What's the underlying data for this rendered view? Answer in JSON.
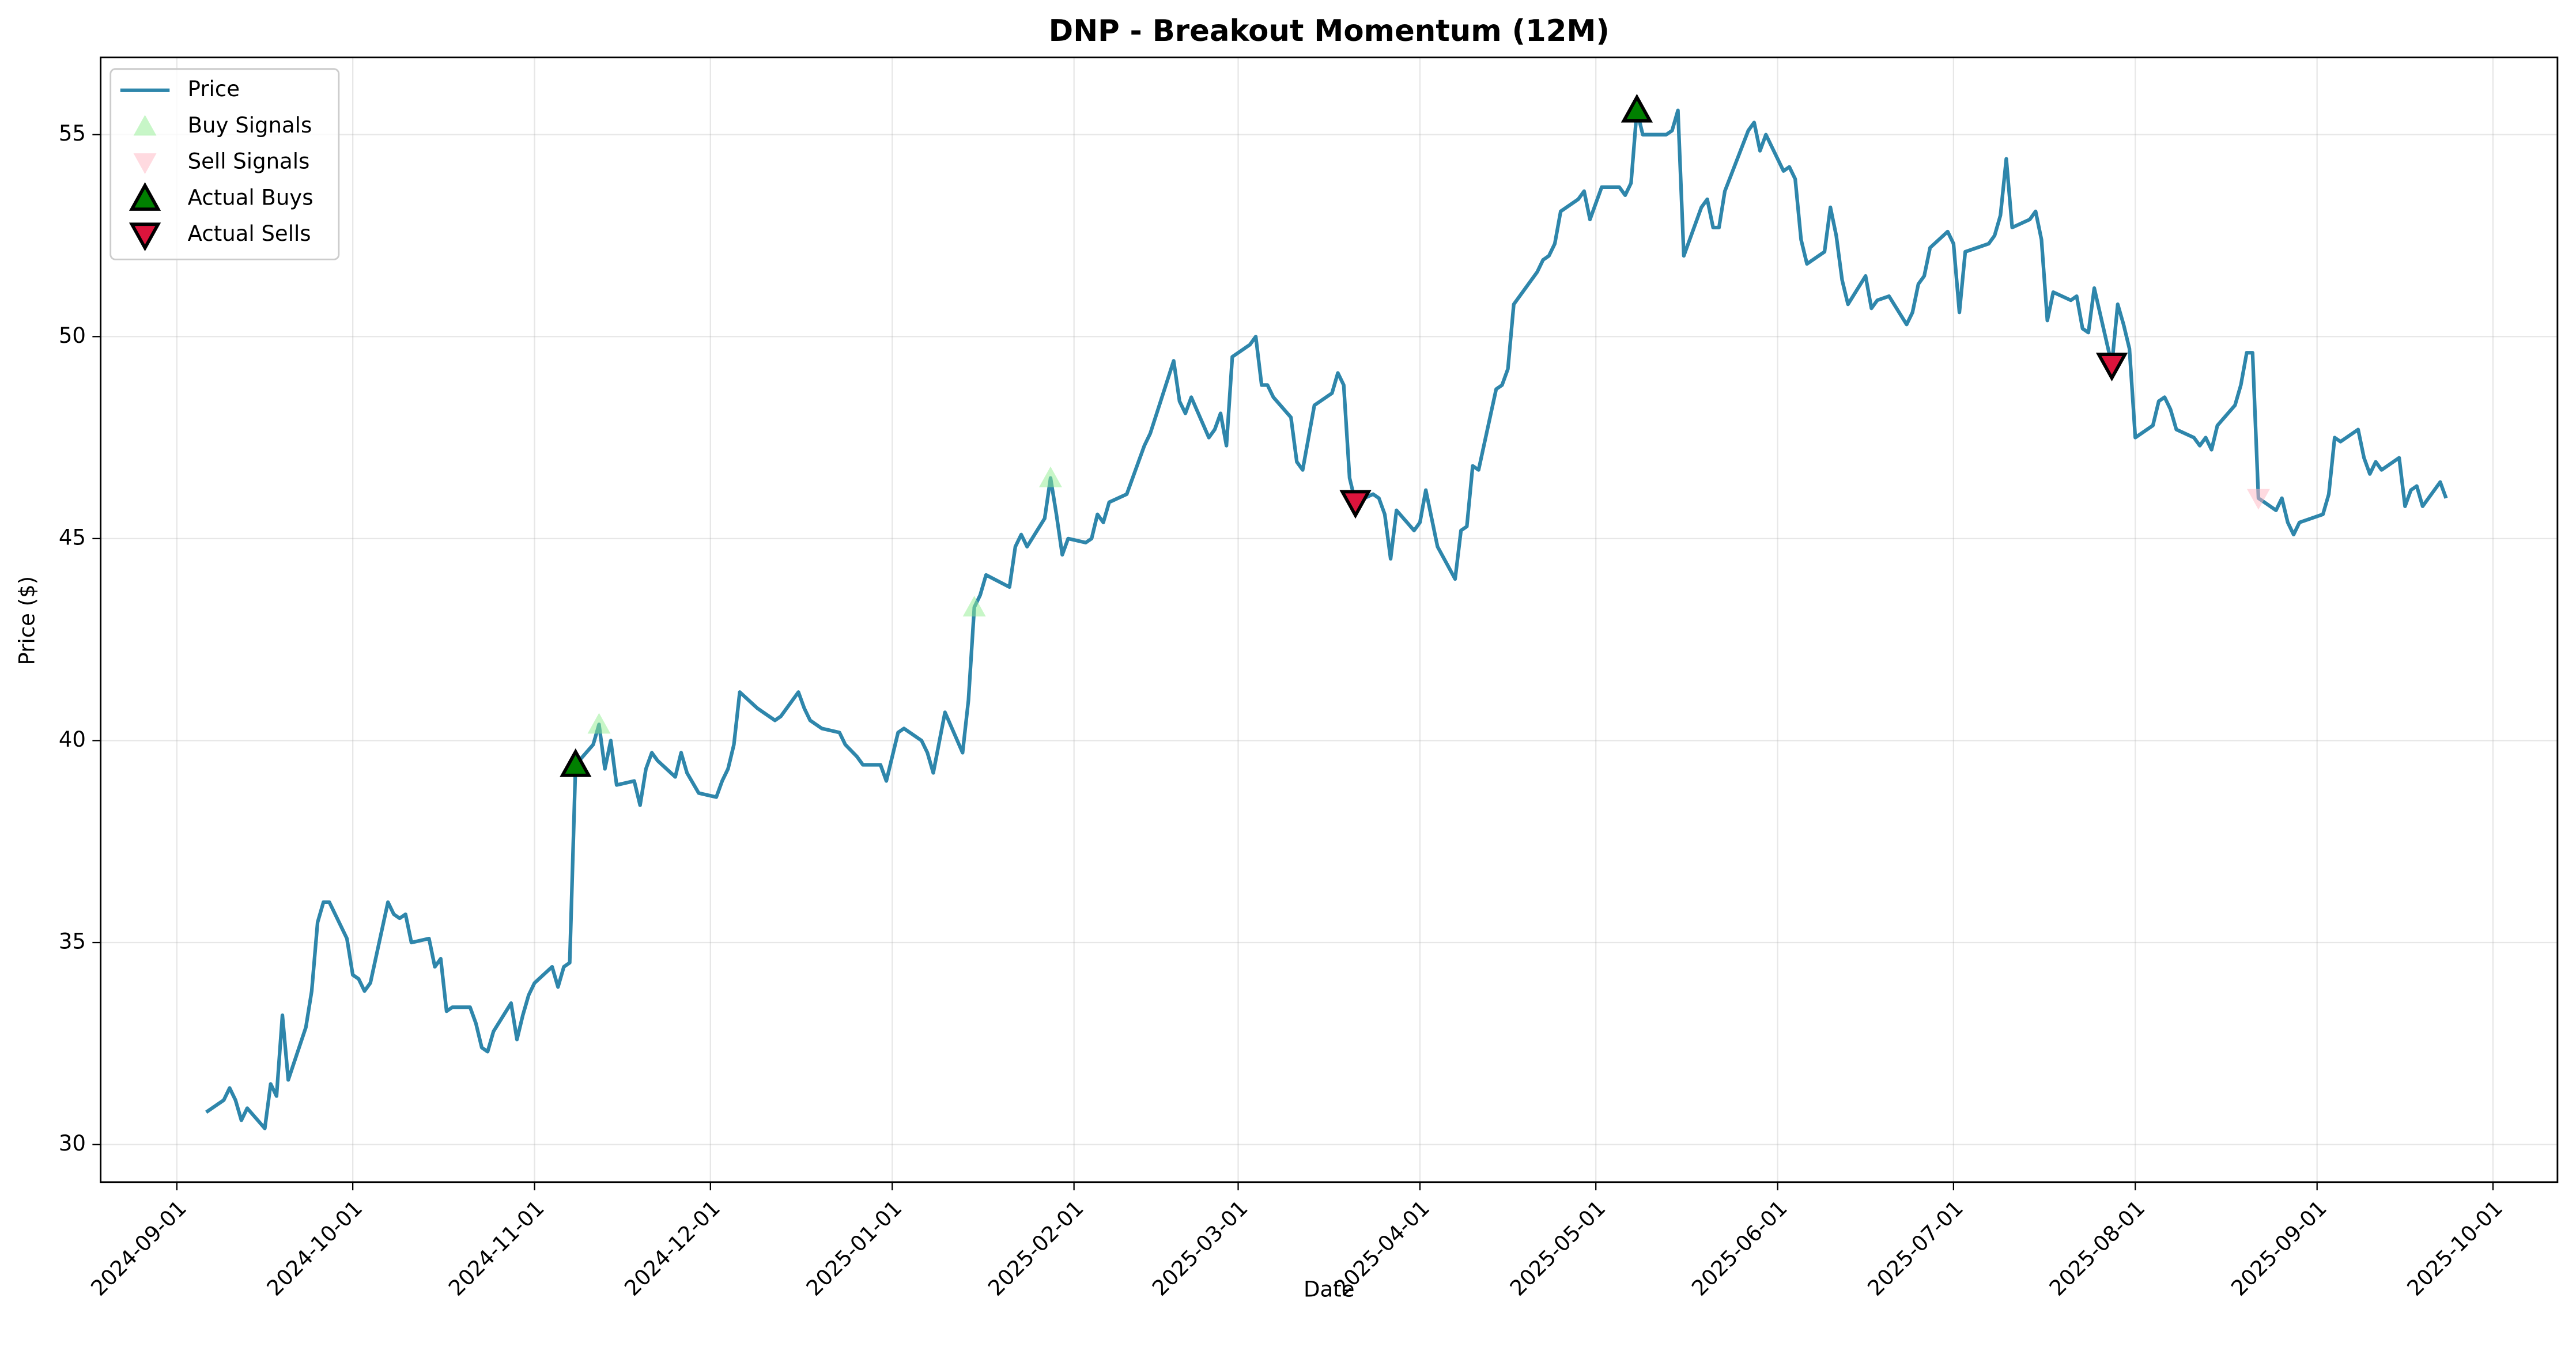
{
  "chart_data": {
    "type": "line",
    "title": "DNP - Breakout Momentum (12M)",
    "xlabel": "Date",
    "ylabel": "Price ($)",
    "xlim": [
      "2024-08-19",
      "2025-10-12"
    ],
    "xticks": [
      "2024-09-01",
      "2024-10-01",
      "2024-11-01",
      "2024-12-01",
      "2025-01-01",
      "2025-02-01",
      "2025-03-01",
      "2025-04-01",
      "2025-05-01",
      "2025-06-01",
      "2025-07-01",
      "2025-08-01",
      "2025-09-01",
      "2025-10-01"
    ],
    "ylim": [
      29.07,
      56.91
    ],
    "yticks": [
      30,
      35,
      40,
      45,
      50,
      55
    ],
    "grid": true,
    "legend": "upper left",
    "series": [
      {
        "name": "Price",
        "color": "#2e86ab",
        "marker": "none",
        "x": [
          "2024-09-06",
          "2024-09-09",
          "2024-09-10",
          "2024-09-11",
          "2024-09-12",
          "2024-09-13",
          "2024-09-16",
          "2024-09-17",
          "2024-09-18",
          "2024-09-19",
          "2024-09-20",
          "2024-09-23",
          "2024-09-24",
          "2024-09-25",
          "2024-09-26",
          "2024-09-27",
          "2024-09-30",
          "2024-10-01",
          "2024-10-02",
          "2024-10-03",
          "2024-10-04",
          "2024-10-07",
          "2024-10-08",
          "2024-10-09",
          "2024-10-10",
          "2024-10-11",
          "2024-10-14",
          "2024-10-15",
          "2024-10-16",
          "2024-10-17",
          "2024-10-18",
          "2024-10-21",
          "2024-10-22",
          "2024-10-23",
          "2024-10-24",
          "2024-10-25",
          "2024-10-28",
          "2024-10-29",
          "2024-10-30",
          "2024-10-31",
          "2024-11-01",
          "2024-11-04",
          "2024-11-05",
          "2024-11-06",
          "2024-11-07",
          "2024-11-08",
          "2024-11-11",
          "2024-11-12",
          "2024-11-13",
          "2024-11-14",
          "2024-11-15",
          "2024-11-18",
          "2024-11-19",
          "2024-11-20",
          "2024-11-21",
          "2024-11-22",
          "2024-11-25",
          "2024-11-26",
          "2024-11-27",
          "2024-11-29",
          "2024-12-02",
          "2024-12-03",
          "2024-12-04",
          "2024-12-05",
          "2024-12-06",
          "2024-12-09",
          "2024-12-10",
          "2024-12-11",
          "2024-12-12",
          "2024-12-13",
          "2024-12-16",
          "2024-12-17",
          "2024-12-18",
          "2024-12-19",
          "2024-12-20",
          "2024-12-23",
          "2024-12-24",
          "2024-12-26",
          "2024-12-27",
          "2024-12-30",
          "2024-12-31",
          "2025-01-02",
          "2025-01-03",
          "2025-01-06",
          "2025-01-07",
          "2025-01-08",
          "2025-01-10",
          "2025-01-13",
          "2025-01-14",
          "2025-01-15",
          "2025-01-16",
          "2025-01-17",
          "2025-01-21",
          "2025-01-22",
          "2025-01-23",
          "2025-01-24",
          "2025-01-27",
          "2025-01-28",
          "2025-01-29",
          "2025-01-30",
          "2025-01-31",
          "2025-02-03",
          "2025-02-04",
          "2025-02-05",
          "2025-02-06",
          "2025-02-07",
          "2025-02-10",
          "2025-02-11",
          "2025-02-12",
          "2025-02-13",
          "2025-02-14",
          "2025-02-18",
          "2025-02-19",
          "2025-02-20",
          "2025-02-21",
          "2025-02-24",
          "2025-02-25",
          "2025-02-26",
          "2025-02-27",
          "2025-02-28",
          "2025-03-03",
          "2025-03-04",
          "2025-03-05",
          "2025-03-06",
          "2025-03-07",
          "2025-03-10",
          "2025-03-11",
          "2025-03-12",
          "2025-03-13",
          "2025-03-14",
          "2025-03-17",
          "2025-03-18",
          "2025-03-19",
          "2025-03-20",
          "2025-03-21",
          "2025-03-24",
          "2025-03-25",
          "2025-03-26",
          "2025-03-27",
          "2025-03-28",
          "2025-03-31",
          "2025-04-01",
          "2025-04-02",
          "2025-04-03",
          "2025-04-04",
          "2025-04-07",
          "2025-04-08",
          "2025-04-09",
          "2025-04-10",
          "2025-04-11",
          "2025-04-14",
          "2025-04-15",
          "2025-04-16",
          "2025-04-17",
          "2025-04-21",
          "2025-04-22",
          "2025-04-23",
          "2025-04-24",
          "2025-04-25",
          "2025-04-28",
          "2025-04-29",
          "2025-04-30",
          "2025-05-01",
          "2025-05-02",
          "2025-05-05",
          "2025-05-06",
          "2025-05-07",
          "2025-05-08",
          "2025-05-09",
          "2025-05-12",
          "2025-05-13",
          "2025-05-14",
          "2025-05-15",
          "2025-05-16",
          "2025-05-19",
          "2025-05-20",
          "2025-05-21",
          "2025-05-22",
          "2025-05-23",
          "2025-05-27",
          "2025-05-28",
          "2025-05-29",
          "2025-05-30",
          "2025-06-02",
          "2025-06-03",
          "2025-06-04",
          "2025-06-05",
          "2025-06-06",
          "2025-06-09",
          "2025-06-10",
          "2025-06-11",
          "2025-06-12",
          "2025-06-13",
          "2025-06-16",
          "2025-06-17",
          "2025-06-18",
          "2025-06-20",
          "2025-06-23",
          "2025-06-24",
          "2025-06-25",
          "2025-06-26",
          "2025-06-27",
          "2025-06-30",
          "2025-07-01",
          "2025-07-02",
          "2025-07-03",
          "2025-07-07",
          "2025-07-08",
          "2025-07-09",
          "2025-07-10",
          "2025-07-11",
          "2025-07-14",
          "2025-07-15",
          "2025-07-16",
          "2025-07-17",
          "2025-07-18",
          "2025-07-21",
          "2025-07-22",
          "2025-07-23",
          "2025-07-24",
          "2025-07-25",
          "2025-07-28",
          "2025-07-29",
          "2025-07-30",
          "2025-07-31",
          "2025-08-01",
          "2025-08-04",
          "2025-08-05",
          "2025-08-06",
          "2025-08-07",
          "2025-08-08",
          "2025-08-11",
          "2025-08-12",
          "2025-08-13",
          "2025-08-14",
          "2025-08-15",
          "2025-08-18",
          "2025-08-19",
          "2025-08-20",
          "2025-08-21",
          "2025-08-22",
          "2025-08-25",
          "2025-08-26",
          "2025-08-27",
          "2025-08-28",
          "2025-08-29",
          "2025-09-02",
          "2025-09-03",
          "2025-09-04",
          "2025-09-05",
          "2025-09-08",
          "2025-09-09",
          "2025-09-10",
          "2025-09-11",
          "2025-09-12",
          "2025-09-15",
          "2025-09-16",
          "2025-09-17",
          "2025-09-18",
          "2025-09-19",
          "2025-09-22",
          "2025-09-23"
        ],
        "values": [
          30.8,
          31.1,
          31.4,
          31.1,
          30.6,
          30.9,
          30.4,
          31.5,
          31.2,
          33.2,
          31.6,
          32.9,
          33.8,
          35.5,
          36.0,
          36.0,
          35.1,
          34.2,
          34.1,
          33.8,
          34.0,
          36.0,
          35.7,
          35.6,
          35.7,
          35.0,
          35.1,
          34.4,
          34.6,
          33.3,
          33.4,
          33.4,
          33.0,
          32.4,
          32.3,
          32.8,
          33.5,
          32.6,
          33.2,
          33.7,
          34.0,
          34.4,
          33.9,
          34.4,
          34.5,
          39.4,
          39.9,
          40.4,
          39.3,
          40.0,
          38.9,
          39.0,
          38.4,
          39.3,
          39.7,
          39.5,
          39.1,
          39.7,
          39.2,
          38.7,
          38.6,
          39.0,
          39.3,
          39.9,
          41.2,
          40.8,
          40.7,
          40.6,
          40.5,
          40.6,
          41.2,
          40.8,
          40.5,
          40.4,
          40.3,
          40.2,
          39.9,
          39.6,
          39.4,
          39.4,
          39.0,
          40.2,
          40.3,
          40.0,
          39.7,
          39.2,
          40.7,
          39.7,
          41.0,
          43.3,
          43.6,
          44.1,
          43.8,
          44.8,
          45.1,
          44.8,
          45.5,
          46.5,
          45.6,
          44.6,
          45.0,
          44.9,
          45.0,
          45.6,
          45.4,
          45.9,
          46.1,
          46.5,
          46.9,
          47.3,
          47.6,
          49.4,
          48.4,
          48.1,
          48.5,
          47.5,
          47.7,
          48.1,
          47.3,
          49.5,
          49.8,
          50.0,
          48.8,
          48.8,
          48.5,
          48.0,
          46.9,
          46.7,
          47.5,
          48.3,
          48.6,
          49.1,
          48.8,
          46.5,
          45.9,
          46.1,
          46.0,
          45.6,
          44.5,
          45.7,
          45.2,
          45.4,
          46.2,
          45.5,
          44.8,
          44.0,
          45.2,
          45.3,
          46.8,
          46.7,
          48.7,
          48.8,
          49.2,
          50.8,
          51.6,
          51.9,
          52.0,
          52.3,
          53.1,
          53.4,
          53.6,
          52.9,
          53.3,
          53.7,
          53.7,
          53.5,
          53.8,
          55.6,
          55.0,
          55.0,
          55.0,
          55.1,
          55.6,
          52.0,
          53.2,
          53.4,
          52.7,
          52.7,
          53.6,
          55.1,
          55.3,
          54.6,
          55.0,
          54.1,
          54.2,
          53.9,
          52.4,
          51.8,
          52.1,
          53.2,
          52.5,
          51.4,
          50.8,
          51.5,
          50.7,
          50.9,
          51.0,
          50.3,
          50.6,
          51.3,
          51.5,
          52.2,
          52.6,
          52.3,
          50.6,
          52.1,
          52.3,
          52.5,
          53.0,
          54.4,
          52.7,
          52.9,
          53.1,
          52.4,
          50.4,
          51.1,
          50.9,
          51.0,
          50.2,
          50.1,
          51.2,
          49.3,
          50.8,
          50.3,
          49.7,
          47.5,
          47.8,
          48.4,
          48.5,
          48.2,
          47.7,
          47.5,
          47.3,
          47.5,
          47.2,
          47.8,
          48.3,
          48.8,
          49.6,
          49.6,
          46.0,
          45.7,
          46.0,
          45.4,
          45.1,
          45.4,
          45.6,
          46.1,
          47.5,
          47.4,
          47.7,
          47.0,
          46.6,
          46.9,
          46.7,
          47.0,
          45.8,
          46.2,
          46.3,
          45.8,
          46.4,
          46.0
        ]
      },
      {
        "name": "Buy Signals",
        "color": "#90ee90",
        "marker": "^",
        "alpha": 0.5,
        "x": [
          "2024-11-12",
          "2025-01-15",
          "2025-01-28"
        ],
        "values": [
          40.4,
          43.3,
          46.5
        ]
      },
      {
        "name": "Sell Signals",
        "color": "#ffb6c1",
        "marker": "v",
        "alpha": 0.5,
        "x": [
          "2025-08-22"
        ],
        "values": [
          46.0
        ]
      },
      {
        "name": "Actual Buys",
        "color": "#008000",
        "marker": "^",
        "alpha": 1,
        "edge": "#000000",
        "x": [
          "2024-11-08",
          "2025-05-08"
        ],
        "values": [
          39.4,
          55.6
        ]
      },
      {
        "name": "Actual Sells",
        "color": "#dc143c",
        "marker": "v",
        "alpha": 1,
        "edge": "#000000",
        "x": [
          "2025-03-21",
          "2025-07-28"
        ],
        "values": [
          45.9,
          49.3
        ]
      }
    ]
  }
}
